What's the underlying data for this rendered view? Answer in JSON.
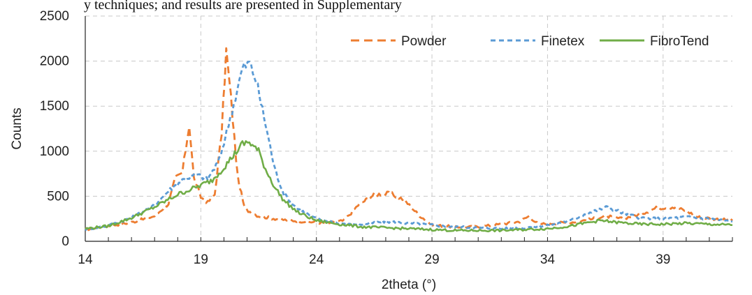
{
  "top_text": "y techniques; and results are presented in Supplementary",
  "chart_data": {
    "type": "line",
    "title": "",
    "xlabel": "2theta (°)",
    "ylabel": "Counts",
    "xlim": [
      14,
      42
    ],
    "ylim": [
      0,
      2500
    ],
    "xticks": [
      14,
      19,
      24,
      29,
      34,
      39
    ],
    "yticks": [
      0,
      500,
      1000,
      1500,
      2000,
      2500
    ],
    "grid": true,
    "legend_position": "top-right",
    "series": [
      {
        "name": "Powder",
        "color": "#ED7D31",
        "style": "dashed",
        "points": [
          [
            14,
            130
          ],
          [
            15,
            170
          ],
          [
            16,
            210
          ],
          [
            17,
            280
          ],
          [
            17.6,
            420
          ],
          [
            17.9,
            700
          ],
          [
            18.2,
            760
          ],
          [
            18.5,
            1300
          ],
          [
            18.7,
            700
          ],
          [
            19.0,
            490
          ],
          [
            19.3,
            430
          ],
          [
            19.6,
            520
          ],
          [
            19.9,
            1200
          ],
          [
            20.1,
            2120
          ],
          [
            20.3,
            1600
          ],
          [
            20.6,
            700
          ],
          [
            20.9,
            360
          ],
          [
            21.5,
            280
          ],
          [
            22.5,
            240
          ],
          [
            23.5,
            220
          ],
          [
            24.5,
            200
          ],
          [
            25.2,
            230
          ],
          [
            25.8,
            400
          ],
          [
            26.5,
            520
          ],
          [
            27.2,
            530
          ],
          [
            27.8,
            460
          ],
          [
            28.4,
            300
          ],
          [
            29,
            180
          ],
          [
            30,
            160
          ],
          [
            31,
            160
          ],
          [
            32,
            190
          ],
          [
            32.8,
            220
          ],
          [
            33.2,
            280
          ],
          [
            33.6,
            190
          ],
          [
            34.2,
            200
          ],
          [
            35,
            210
          ],
          [
            35.8,
            240
          ],
          [
            36.5,
            280
          ],
          [
            37.2,
            250
          ],
          [
            38,
            300
          ],
          [
            38.7,
            370
          ],
          [
            39.4,
            380
          ],
          [
            40,
            340
          ],
          [
            40.5,
            270
          ],
          [
            41.2,
            250
          ],
          [
            42,
            230
          ]
        ]
      },
      {
        "name": "Finetex",
        "color": "#5B9BD5",
        "style": "dashed",
        "points": [
          [
            14,
            130
          ],
          [
            15,
            175
          ],
          [
            16,
            260
          ],
          [
            17,
            400
          ],
          [
            17.6,
            560
          ],
          [
            18.2,
            680
          ],
          [
            18.8,
            740
          ],
          [
            19.3,
            690
          ],
          [
            19.8,
            900
          ],
          [
            20.2,
            1300
          ],
          [
            20.5,
            1600
          ],
          [
            20.8,
            1920
          ],
          [
            21.1,
            1980
          ],
          [
            21.4,
            1780
          ],
          [
            21.8,
            1300
          ],
          [
            22.2,
            800
          ],
          [
            22.6,
            520
          ],
          [
            23.2,
            360
          ],
          [
            24,
            250
          ],
          [
            25,
            200
          ],
          [
            26,
            190
          ],
          [
            27,
            220
          ],
          [
            28,
            200
          ],
          [
            29,
            180
          ],
          [
            30,
            160
          ],
          [
            31,
            150
          ],
          [
            32,
            140
          ],
          [
            33,
            150
          ],
          [
            34,
            180
          ],
          [
            35,
            230
          ],
          [
            35.6,
            300
          ],
          [
            36.2,
            350
          ],
          [
            36.6,
            380
          ],
          [
            37.2,
            320
          ],
          [
            38,
            260
          ],
          [
            39,
            250
          ],
          [
            40,
            270
          ],
          [
            41,
            250
          ],
          [
            42,
            220
          ]
        ]
      },
      {
        "name": "FibroTend",
        "color": "#70AD47",
        "style": "solid",
        "points": [
          [
            14,
            140
          ],
          [
            15,
            170
          ],
          [
            16,
            260
          ],
          [
            17,
            380
          ],
          [
            18,
            520
          ],
          [
            18.8,
            600
          ],
          [
            19.5,
            680
          ],
          [
            20,
            820
          ],
          [
            20.4,
            950
          ],
          [
            20.8,
            1080
          ],
          [
            21.1,
            1100
          ],
          [
            21.5,
            1000
          ],
          [
            21.8,
            800
          ],
          [
            22.2,
            600
          ],
          [
            22.6,
            450
          ],
          [
            23.2,
            320
          ],
          [
            24,
            230
          ],
          [
            25,
            190
          ],
          [
            26,
            160
          ],
          [
            27,
            150
          ],
          [
            28,
            140
          ],
          [
            29,
            130
          ],
          [
            30,
            120
          ],
          [
            31,
            120
          ],
          [
            32,
            120
          ],
          [
            33,
            130
          ],
          [
            34,
            140
          ],
          [
            35,
            170
          ],
          [
            35.8,
            210
          ],
          [
            36.3,
            230
          ],
          [
            37,
            210
          ],
          [
            38,
            190
          ],
          [
            39,
            190
          ],
          [
            40,
            200
          ],
          [
            41,
            190
          ],
          [
            42,
            180
          ]
        ]
      }
    ]
  }
}
